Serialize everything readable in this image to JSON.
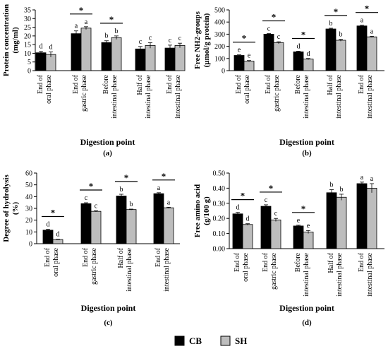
{
  "legend": [
    {
      "name": "CB",
      "color": "#000000"
    },
    {
      "name": "SH",
      "color": "#bdbdbd"
    }
  ],
  "chart_data": [
    {
      "type": "bar",
      "panel_label": "(a)",
      "xlabel": "Digestion point",
      "ylabel": "Protein concentration (mg/ml)",
      "ylabel_lines": [
        "Protein concentration",
        "(mg/ml)"
      ],
      "ylim": [
        0,
        35
      ],
      "yticks": [
        0,
        5,
        10,
        15,
        20,
        25,
        30,
        35
      ],
      "categories": [
        "End of oral phase",
        "End of gastric phase",
        "Before intestinal phase",
        "Half of intestinal phase",
        "End of intestinal phase"
      ],
      "category_lines": [
        [
          "End of",
          "oral phase"
        ],
        [
          "End of",
          "gastric phase"
        ],
        [
          "Before",
          "intestinal phase"
        ],
        [
          "Half of",
          "intestinal phase"
        ],
        [
          "End of",
          "intestinal phase"
        ]
      ],
      "series": [
        {
          "name": "CB",
          "values": [
            10.3,
            21.3,
            16.2,
            12.5,
            13.0
          ],
          "errors": [
            0.8,
            1.6,
            1.0,
            1.4,
            1.7
          ],
          "letters": [
            "d",
            "a",
            "b",
            "c",
            "c"
          ]
        },
        {
          "name": "SH",
          "values": [
            9.3,
            24.5,
            19.0,
            14.5,
            14.5
          ],
          "errors": [
            1.5,
            0.8,
            1.0,
            1.6,
            1.3
          ],
          "letters": [
            "d",
            "a",
            "b",
            "c",
            "c"
          ]
        }
      ],
      "significant": [
        false,
        true,
        true,
        false,
        false
      ]
    },
    {
      "type": "bar",
      "panel_label": "(b)",
      "xlabel": "Digestion point",
      "ylabel": "Free NH2-groups (µmol/g protein)",
      "ylabel_lines": [
        "Free NH2-groups",
        "(µmol/g protein)"
      ],
      "ylim": [
        0,
        500
      ],
      "yticks": [
        0,
        100,
        200,
        300,
        400,
        500
      ],
      "categories": [
        "End of oral phase",
        "End of gastric phase",
        "Before intestinal phase",
        "Half of intestinal phase",
        "End of intestinal phase"
      ],
      "category_lines": [
        [
          "End of",
          "oral phase"
        ],
        [
          "End of",
          "gastric phase"
        ],
        [
          "Before",
          "intestinal phase"
        ],
        [
          "Half of",
          "intestinal phase"
        ],
        [
          "End of",
          "intestinal phase"
        ]
      ],
      "series": [
        {
          "name": "CB",
          "values": [
            125,
            300,
            155,
            343,
            368
          ],
          "errors": [
            5,
            5,
            5,
            6,
            6
          ],
          "letters": [
            "e",
            "c",
            "d",
            "b",
            "a"
          ]
        },
        {
          "name": "SH",
          "values": [
            78,
            230,
            95,
            250,
            278
          ],
          "errors": [
            5,
            8,
            5,
            8,
            5
          ],
          "letters": [
            "e",
            "c",
            "d",
            "b",
            "a"
          ]
        }
      ],
      "significant": [
        true,
        true,
        true,
        true,
        true
      ]
    },
    {
      "type": "bar",
      "panel_label": "(c)",
      "xlabel": "Digestion point",
      "ylabel": "Degree of hydrolysis (%)",
      "ylabel_lines": [
        "Degree of hydrolysis",
        "(%)"
      ],
      "ylim": [
        0,
        60
      ],
      "yticks": [
        0,
        10,
        20,
        30,
        40,
        50,
        60
      ],
      "categories": [
        "End of oral phase",
        "End of gastric phase",
        "Half of intestinal phase",
        "End of intestinal phase"
      ],
      "category_lines": [
        [
          "End of",
          "oral phase"
        ],
        [
          "End of",
          "gastric phase"
        ],
        [
          "Half of",
          "intestinal phase"
        ],
        [
          "End of",
          "intestinal phase"
        ]
      ],
      "series": [
        {
          "name": "CB",
          "values": [
            11.5,
            34.0,
            40.5,
            42.5
          ],
          "errors": [
            0.8,
            0.8,
            1.5,
            0.8
          ],
          "letters": [
            "d",
            "c",
            "b",
            "a"
          ]
        },
        {
          "name": "SH",
          "values": [
            3.5,
            27.5,
            29.0,
            30.5
          ],
          "errors": [
            0.3,
            0.5,
            0.4,
            0.5
          ],
          "letters": [
            "d",
            "c",
            "b",
            "a"
          ]
        }
      ],
      "significant": [
        true,
        true,
        true,
        true
      ]
    },
    {
      "type": "bar",
      "panel_label": "(d)",
      "xlabel": "Digestion point",
      "ylabel": "Free amino acid (g/100 g)",
      "ylabel_lines": [
        "Free amino acid",
        "(g/100 g)"
      ],
      "ylim": [
        0,
        0.5
      ],
      "yticks": [
        0,
        0.1,
        0.2,
        0.3,
        0.4,
        0.5
      ],
      "ytick_labels": [
        "0.00",
        "0.10",
        "0.20",
        "0.30",
        "0.40",
        "0.50"
      ],
      "categories": [
        "End of oral phase",
        "End of gastric phase",
        "Before intestinal phase",
        "Half of intestinal phase",
        "End of intestinal phase"
      ],
      "category_lines": [
        [
          "End of",
          "oral phase"
        ],
        [
          "End of",
          "gastric phase"
        ],
        [
          "Before",
          "intestinal phase"
        ],
        [
          "Half of",
          "intestinal phase"
        ],
        [
          "End of",
          "intestinal phase"
        ]
      ],
      "series": [
        {
          "name": "CB",
          "values": [
            0.23,
            0.28,
            0.15,
            0.37,
            0.43
          ],
          "errors": [
            0.01,
            0.01,
            0.005,
            0.02,
            0.01
          ],
          "letters": [
            "d",
            "c",
            "e",
            "b",
            "a"
          ]
        },
        {
          "name": "SH",
          "values": [
            0.16,
            0.19,
            0.11,
            0.34,
            0.4
          ],
          "errors": [
            0.005,
            0.01,
            0.01,
            0.02,
            0.03
          ],
          "letters": [
            "d",
            "c",
            "e",
            "b",
            "a"
          ]
        }
      ],
      "significant": [
        true,
        true,
        true,
        false,
        false
      ]
    }
  ]
}
